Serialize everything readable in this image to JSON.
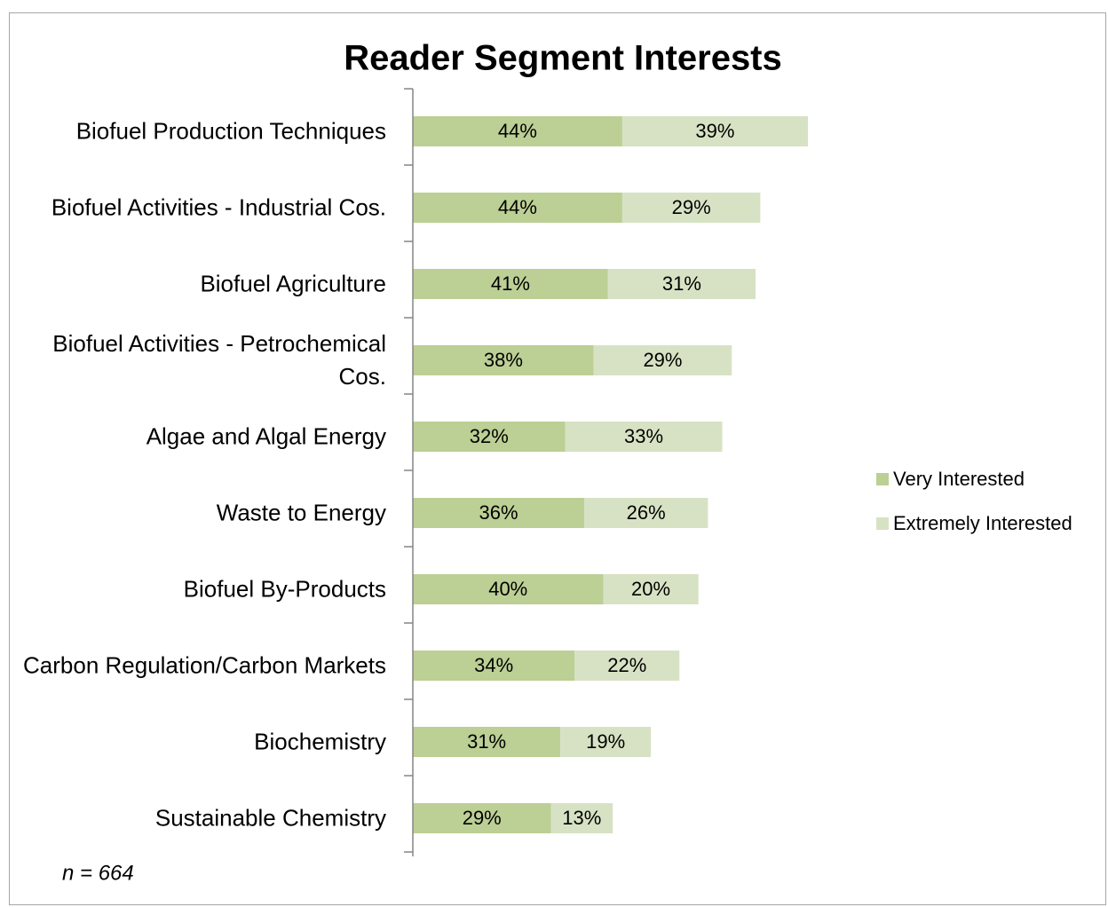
{
  "chart_data": {
    "type": "stacked-bar-horizontal",
    "title": "Reader Segment Interests",
    "categories": [
      "Biofuel Production Techniques",
      "Biofuel Activities - Industrial Cos.",
      "Biofuel Agriculture",
      "Biofuel Activities - Petrochemical Cos.",
      "Algae and Algal Energy",
      "Waste to Energy",
      "Biofuel By-Products",
      "Carbon Regulation/Carbon Markets",
      "Biochemistry",
      "Sustainable Chemistry"
    ],
    "series": [
      {
        "name": "Very Interested",
        "color": "#bccf95",
        "values": [
          44,
          44,
          41,
          38,
          32,
          36,
          40,
          34,
          31,
          29
        ],
        "value_labels": [
          "44%",
          "44%",
          "41%",
          "38%",
          "32%",
          "36%",
          "40%",
          "34%",
          "31%",
          "29%"
        ]
      },
      {
        "name": "Extremely Interested",
        "color": "#d7e2c4",
        "values": [
          39,
          29,
          31,
          29,
          33,
          26,
          20,
          22,
          19,
          13
        ],
        "value_labels": [
          "39%",
          "29%",
          "31%",
          "29%",
          "33%",
          "26%",
          "20%",
          "22%",
          "19%",
          "13%"
        ]
      }
    ],
    "legend": "right",
    "annotations": [
      "n = 664"
    ]
  }
}
